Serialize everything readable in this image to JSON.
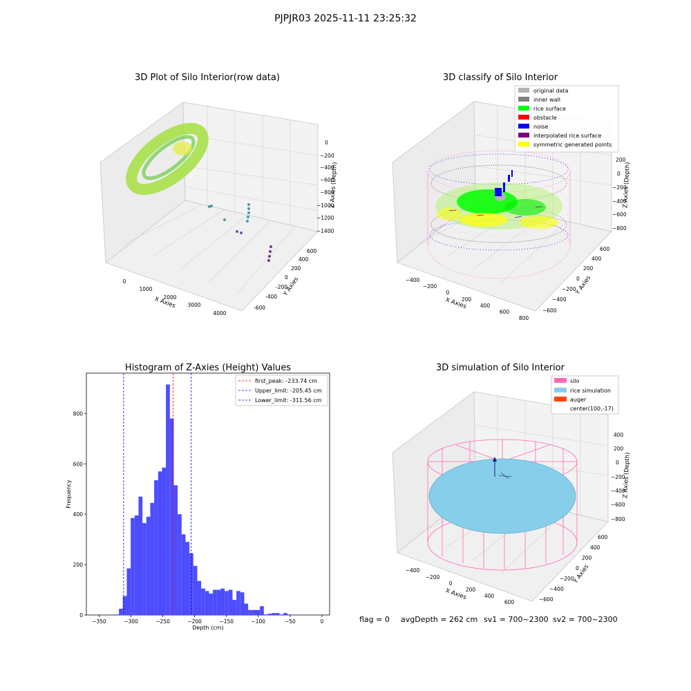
{
  "suptitle": "PJPJR03 2025-11-11 23:25:32",
  "footer": {
    "flag": "flag = 0",
    "avg_depth": "avgDepth = 262 cm",
    "sv1": "sv1 = 700~2300",
    "sv2": "sv2 = 700~2300"
  },
  "colors": {
    "original": "#b3b3b3",
    "inner_wall": "#808080",
    "rice_surface": "#00ff00",
    "obstacle": "#ff0000",
    "noise": "#0000ff",
    "interpolated": "#800080",
    "symmetric": "#ffff00",
    "hist_bar": "#4d4dff",
    "peak_line": "#ff0000",
    "limit_line": "#0000ff",
    "silo": "#ff69b4",
    "rice_sim": "#87ceeb",
    "auger": "#ff4500",
    "raw_cloud": "#a8e04a"
  },
  "chart_data": [
    {
      "type": "scatter",
      "title": "3D Plot of Silo Interior(row data)",
      "xlabel": "X Axies",
      "ylabel": "Y Axies",
      "zlabel": "Z Axies (Depth)",
      "x_ticks": [
        "0",
        "1000",
        "2000",
        "3000",
        "4000"
      ],
      "y_ticks": [
        "-600",
        "-400",
        "-200",
        "0",
        "200",
        "400",
        "600"
      ],
      "z_ticks": [
        "0",
        "−200",
        "−400",
        "−600",
        "−800",
        "−1000",
        "−1200",
        "−1400"
      ]
    },
    {
      "type": "scatter",
      "title": "3D classify of Silo Interior",
      "xlabel": "X Axies",
      "ylabel": "Y Axies",
      "zlabel": "Z Axies (Depth)",
      "x_ticks": [
        "−400",
        "−200",
        "0",
        "200",
        "400",
        "600",
        "800"
      ],
      "y_ticks": [
        "−600",
        "−400",
        "−200",
        "0",
        "200",
        "400",
        "600"
      ],
      "z_ticks": [
        "200",
        "0",
        "−200",
        "−400",
        "−600",
        "−800"
      ],
      "legend": [
        "original data",
        "inner wall",
        "rice surface",
        "obstacle",
        "noise",
        "interpolated rice surface",
        "symmetric generated points"
      ],
      "legend_position": "top-right"
    },
    {
      "type": "bar",
      "title": "Histogram of Z-Axies (Height) Values",
      "xlabel": "Depth (cm)",
      "ylabel": "Frequency",
      "xlim": [
        -370,
        12
      ],
      "ylim": [
        0,
        960
      ],
      "x_ticks": [
        -350,
        -300,
        -250,
        -200,
        -150,
        -100,
        -50,
        0
      ],
      "y_ticks": [
        0,
        200,
        400,
        600,
        800
      ],
      "bin_start": -325,
      "bin_width": 6.15,
      "values": [
        2,
        25,
        75,
        185,
        385,
        395,
        470,
        365,
        390,
        445,
        535,
        570,
        585,
        915,
        780,
        515,
        400,
        320,
        290,
        245,
        195,
        135,
        105,
        95,
        85,
        100,
        100,
        105,
        95,
        100,
        60,
        95,
        90,
        45,
        20,
        20,
        20,
        35,
        2,
        5,
        8,
        8,
        2,
        8,
        2
      ],
      "vlines": [
        {
          "label": "first_peak: -233.74 cm",
          "x": -233.74,
          "style": "peak"
        },
        {
          "label": "Upper_limit: -205.45 cm",
          "x": -205.45,
          "style": "limit"
        },
        {
          "label": "Lower_limit: -311.56 cm",
          "x": -311.56,
          "style": "limit"
        }
      ],
      "legend_position": "top-right"
    },
    {
      "type": "scatter",
      "title": "3D simulation of Silo Interior",
      "xlabel": "X Axies",
      "ylabel": "Y Axies",
      "zlabel": "Z Axies (Depth)",
      "x_ticks": [
        "−400",
        "−200",
        "0",
        "200",
        "400",
        "600"
      ],
      "y_ticks": [
        "−600",
        "−400",
        "−200",
        "0",
        "200",
        "400",
        "600"
      ],
      "z_ticks": [
        "400",
        "200",
        "0",
        "−200",
        "−400",
        "−600",
        "−800"
      ],
      "legend": [
        "silo",
        "rice simulation",
        "auger",
        "center(100,-17)"
      ],
      "legend_position": "top-right"
    }
  ]
}
